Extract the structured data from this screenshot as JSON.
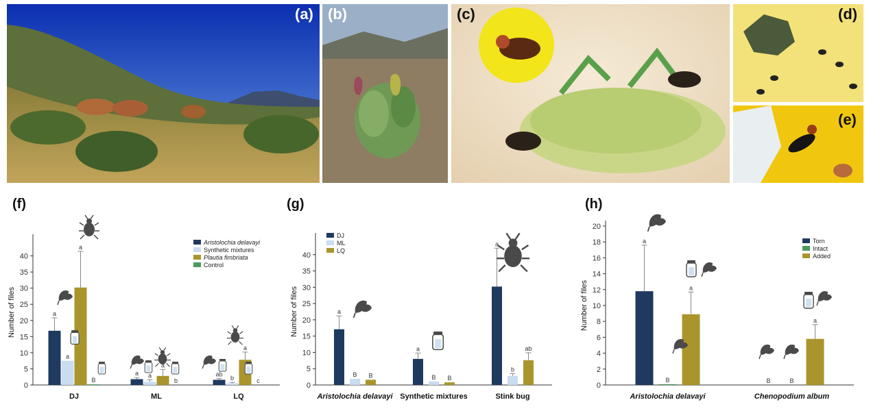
{
  "photos": {
    "a": {
      "label": "(a)",
      "icon": "landscape-cattle"
    },
    "b": {
      "label": "(b)",
      "icon": "plant-flower"
    },
    "c": {
      "label": "(c)",
      "icon": "flies-on-stink-bug"
    },
    "d": {
      "label": "(d)",
      "icon": "flies-on-leaf"
    },
    "e": {
      "label": "(e)",
      "icon": "fly-on-vial"
    }
  },
  "colors": {
    "navy": "#1f3a5f",
    "lightblue": "#c9dcf0",
    "olive": "#a9952c",
    "green": "#4a9a5c",
    "icon": "#4a4a4a"
  },
  "chart_data": [
    {
      "panel": "(f)",
      "type": "bar",
      "categories": [
        "DJ",
        "ML",
        "LQ"
      ],
      "ylabel": "Number of files",
      "ylim": [
        0,
        45
      ],
      "yticks": [
        0,
        5,
        10,
        15,
        20,
        25,
        30,
        35,
        40
      ],
      "legend_position": "top-right",
      "series": [
        {
          "name": "Aristolochia delavayi",
          "italic": true,
          "color": "#1f3a5f",
          "values": [
            16.8,
            1.8,
            1.6
          ],
          "errors": [
            4.0,
            0.5,
            0.4
          ],
          "letters": [
            "a",
            "a",
            "ab"
          ]
        },
        {
          "name": "Synthetic mixtures",
          "italic": false,
          "color": "#c9dcf0",
          "values": [
            7.5,
            1.0,
            0.5
          ],
          "errors": [
            0,
            0.6,
            0.3
          ],
          "letters": [
            "a",
            "a",
            "b"
          ]
        },
        {
          "name": "Plautia fimbriata",
          "italic": true,
          "color": "#a9952c",
          "values": [
            30.2,
            2.8,
            7.8
          ],
          "errors": [
            11.2,
            2.0,
            2.4
          ],
          "letters": [
            "a",
            "a",
            "a"
          ]
        },
        {
          "name": "Control",
          "italic": false,
          "color": "#4a9a5c",
          "values": [
            0.2,
            0,
            0
          ],
          "errors": [
            0,
            0,
            0
          ],
          "letters": [
            "B",
            "b",
            "c"
          ]
        }
      ]
    },
    {
      "panel": "(g)",
      "type": "bar",
      "categories": [
        "Aristolochia delavayi",
        "Synthetic mixtures",
        "Stink bug"
      ],
      "category_italic": [
        true,
        false,
        false
      ],
      "ylabel": "Number of files",
      "ylim": [
        0,
        45
      ],
      "yticks": [
        0,
        5,
        10,
        15,
        20,
        25,
        30,
        35,
        40
      ],
      "legend_position": "top-left",
      "series": [
        {
          "name": "DJ",
          "color": "#1f3a5f",
          "values": [
            17.1,
            8.0,
            30.2
          ],
          "errors": [
            4.1,
            1.8,
            11.8
          ],
          "letters": [
            "a",
            "a",
            "a"
          ]
        },
        {
          "name": "ML",
          "color": "#c9dcf0",
          "values": [
            1.9,
            1.1,
            2.8
          ],
          "errors": [
            0,
            0,
            0.7
          ],
          "letters": [
            "B",
            "B",
            "b"
          ]
        },
        {
          "name": "LQ",
          "color": "#a9952c",
          "values": [
            1.6,
            0.8,
            7.6
          ],
          "errors": [
            0,
            0,
            2.3
          ],
          "letters": [
            "B",
            "B",
            "ab"
          ]
        }
      ]
    },
    {
      "panel": "(h)",
      "type": "bar",
      "categories": [
        "Aristolochia delavayi",
        "Chenopodium album"
      ],
      "category_italic": [
        true,
        true
      ],
      "ylabel": "Number of files",
      "ylim": [
        0,
        20
      ],
      "yticks": [
        0,
        2,
        4,
        6,
        8,
        10,
        12,
        14,
        16,
        18,
        20
      ],
      "legend_position": "top-right",
      "series": [
        {
          "name": "Torn",
          "color": "#1f3a5f",
          "values": [
            11.8,
            0
          ],
          "errors": [
            5.8,
            0
          ],
          "letters": [
            "a",
            "B"
          ]
        },
        {
          "name": "Intact",
          "color": "#4a9a5c",
          "values": [
            0.1,
            0
          ],
          "errors": [
            0,
            0
          ],
          "letters": [
            "B",
            "B"
          ]
        },
        {
          "name": "Added",
          "color": "#a9952c",
          "values": [
            8.9,
            5.8
          ],
          "errors": [
            2.8,
            1.8
          ],
          "letters": [
            "a",
            "a"
          ]
        }
      ]
    }
  ]
}
